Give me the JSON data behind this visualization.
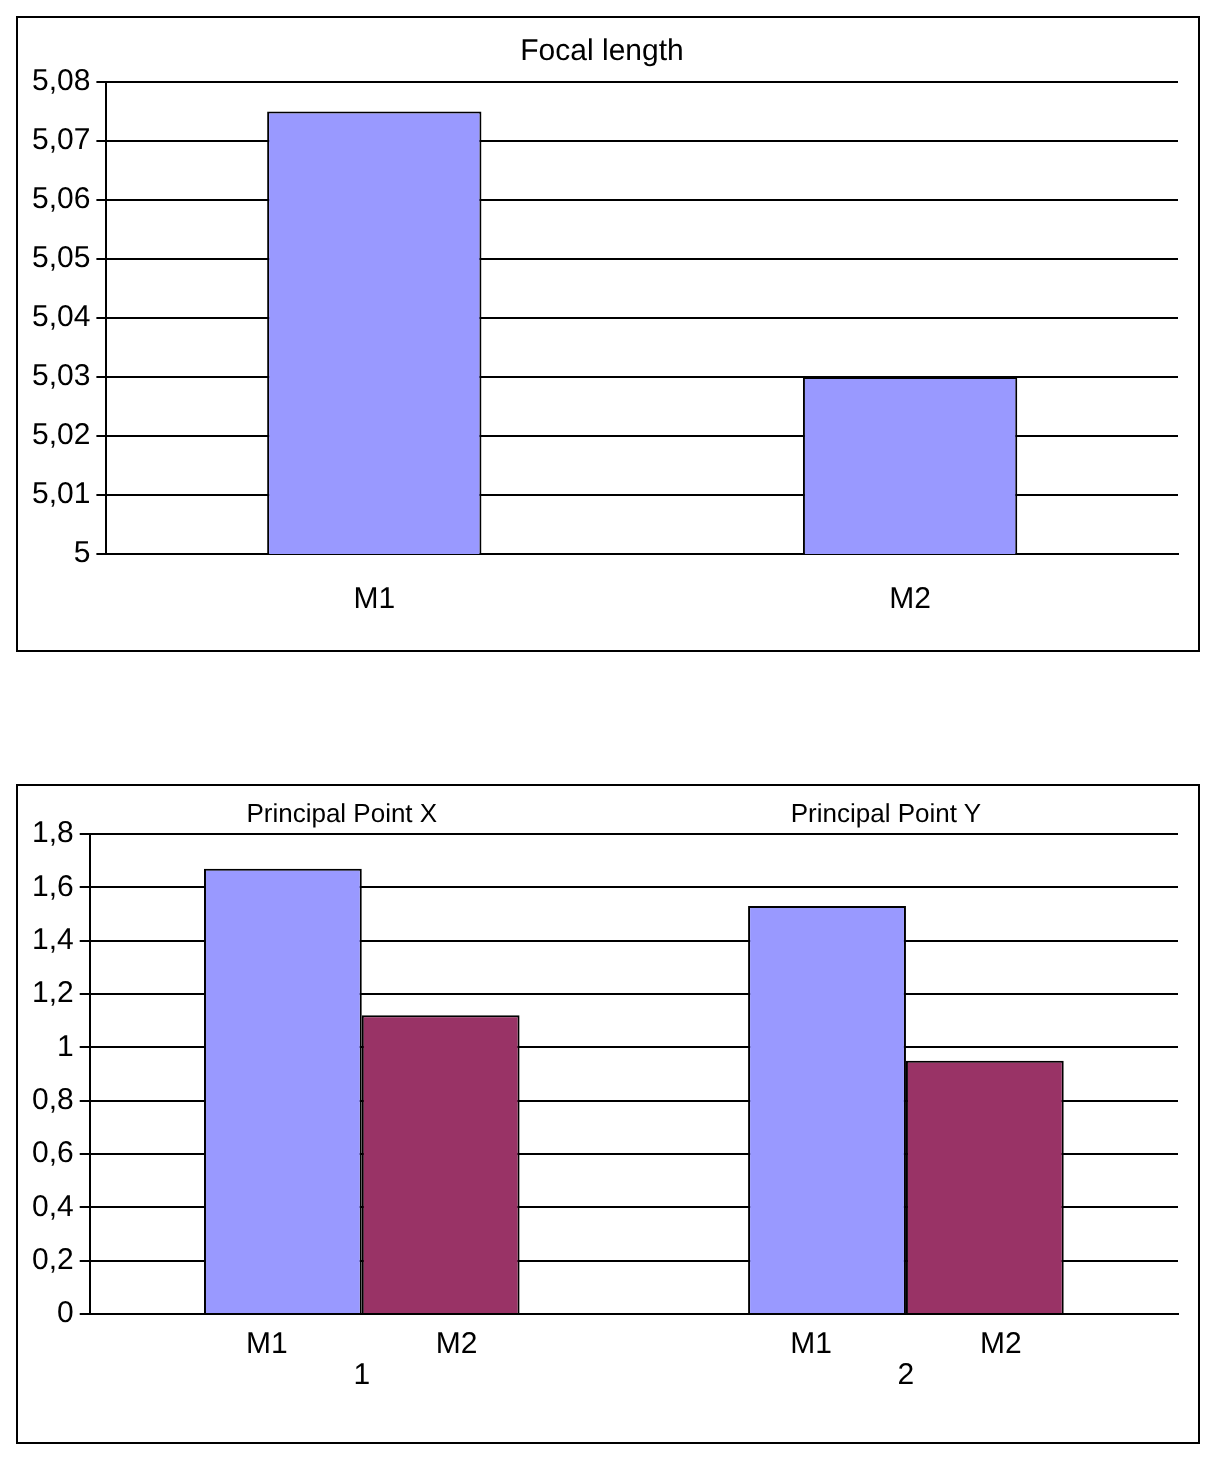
{
  "chart_data": [
    {
      "type": "bar",
      "title": "Focal length",
      "categories": [
        "M1",
        "M2"
      ],
      "values": [
        5.075,
        5.03
      ],
      "color": "#9999ff",
      "ylim": [
        5,
        5.08
      ],
      "yticks": [
        5,
        {
          "value": 5.01,
          "label": "5,01"
        },
        {
          "value": 5.02,
          "label": "5,02"
        },
        {
          "value": 5.03,
          "label": "5,03"
        },
        {
          "value": 5.04,
          "label": "5,04"
        },
        {
          "value": 5.05,
          "label": "5,05"
        },
        {
          "value": 5.06,
          "label": "5,06"
        },
        {
          "value": 5.07,
          "label": "5,07"
        },
        {
          "value": 5.08,
          "label": "5,08"
        }
      ],
      "grid": "y"
    },
    {
      "type": "bar",
      "categories": [
        "1",
        "2"
      ],
      "series": [
        {
          "name": "M1",
          "color": "#9999ff",
          "values": [
            1.67,
            1.53
          ]
        },
        {
          "name": "M2",
          "color": "#993366",
          "values": [
            1.12,
            0.95
          ]
        }
      ],
      "annotations": [
        "Principal Point X",
        "Principal Point Y"
      ],
      "ylim": [
        0,
        1.8
      ],
      "yticks": [
        0,
        {
          "value": 0.2,
          "label": "0,2"
        },
        {
          "value": 0.4,
          "label": "0,4"
        },
        {
          "value": 0.6,
          "label": "0,6"
        },
        {
          "value": 0.8,
          "label": "0,8"
        },
        1,
        {
          "value": 1.2,
          "label": "1,2"
        },
        {
          "value": 1.4,
          "label": "1,4"
        },
        {
          "value": 1.6,
          "label": "1,6"
        },
        {
          "value": 1.8,
          "label": "1,8"
        }
      ],
      "grid": "y"
    }
  ]
}
